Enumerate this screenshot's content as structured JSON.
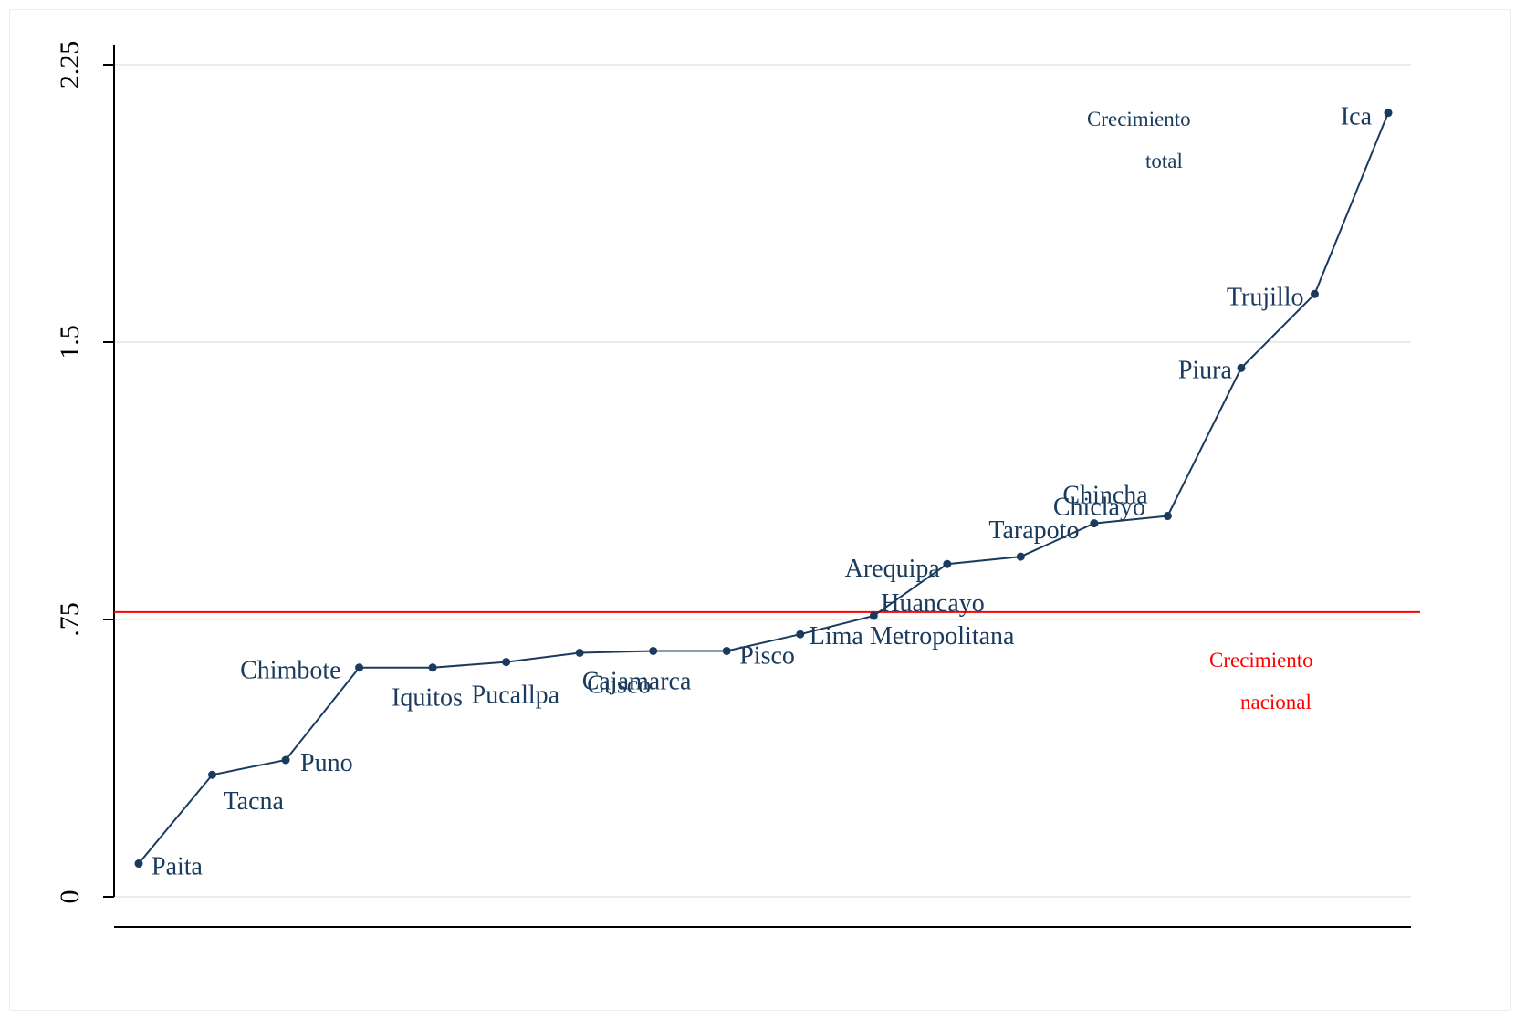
{
  "chart_data": {
    "type": "line",
    "title": "",
    "xlabel": "",
    "ylabel": "",
    "ylim": [
      0,
      2.25
    ],
    "yticks": [
      {
        "value": 0,
        "label": "0"
      },
      {
        "value": 0.75,
        "label": ".75"
      },
      {
        "value": 1.5,
        "label": "1.5"
      },
      {
        "value": 2.25,
        "label": "2.25"
      }
    ],
    "grid": true,
    "series": [
      {
        "color": "#1a3b5d",
        "points": [
          {
            "label": "Paita",
            "y": 0.09
          },
          {
            "label": "Tacna",
            "y": 0.33
          },
          {
            "label": "Puno",
            "y": 0.37
          },
          {
            "label": "Chimbote",
            "y": 0.62
          },
          {
            "label": "Iquitos",
            "y": 0.62
          },
          {
            "label": "Pucallpa",
            "y": 0.635
          },
          {
            "label": "Cusco",
            "y": 0.66
          },
          {
            "label": "Cajamarca",
            "y": 0.665
          },
          {
            "label": "Pisco",
            "y": 0.665
          },
          {
            "label": "Lima Metropolitana",
            "y": 0.71
          },
          {
            "label": "Huancayo",
            "y": 0.76
          },
          {
            "label": "Arequipa",
            "y": 0.9
          },
          {
            "label": "Tarapoto",
            "y": 0.92
          },
          {
            "label": "Chiclayo",
            "y": 1.01
          },
          {
            "label": "Chincha",
            "y": 1.03
          },
          {
            "label": "Piura",
            "y": 1.43
          },
          {
            "label": "Trujillo",
            "y": 1.63
          },
          {
            "label": "Ica",
            "y": 2.12
          }
        ]
      }
    ],
    "reference_line": {
      "y": 0.77,
      "color": "#ff0000"
    },
    "annotations": {
      "total": {
        "lines": [
          "Crecimiento",
          "total"
        ],
        "color": "#1a3b5d"
      },
      "nacional": {
        "lines": [
          "Crecimiento",
          "nacional"
        ],
        "color": "#ff0000"
      }
    }
  }
}
